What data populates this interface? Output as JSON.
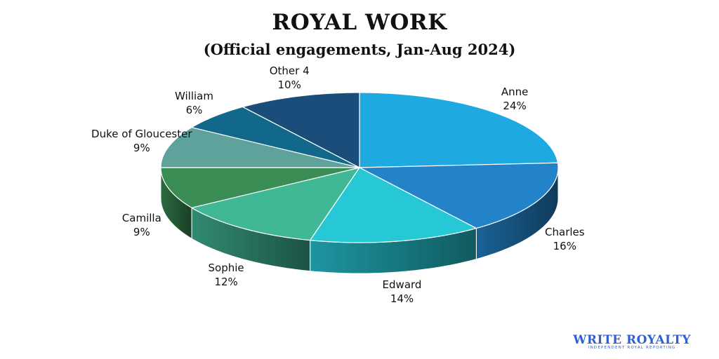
{
  "chart_data": {
    "type": "pie",
    "title": "ROYAL WORK",
    "subtitle": "(Official engagements, Jan-Aug 2024)",
    "categories": [
      "Anne",
      "Charles",
      "Edward",
      "Sophie",
      "Camilla",
      "Duke of Gloucester",
      "William",
      "Other 4"
    ],
    "values": [
      24,
      16,
      14,
      12,
      9,
      9,
      6,
      10
    ],
    "value_labels": [
      "24%",
      "16%",
      "14%",
      "12%",
      "9%",
      "9%",
      "6%",
      "10%"
    ],
    "colors": [
      "#1ea9e1",
      "#2383c9",
      "#26c8d6",
      "#40b896",
      "#3a8d55",
      "#5fa29c",
      "#12688a",
      "#1a4d7a"
    ],
    "style": "3d"
  },
  "branding": {
    "logo_text": "WRITE ROYALTY",
    "logo_tagline": "INDEPENDENT ROYAL REPORTING"
  }
}
